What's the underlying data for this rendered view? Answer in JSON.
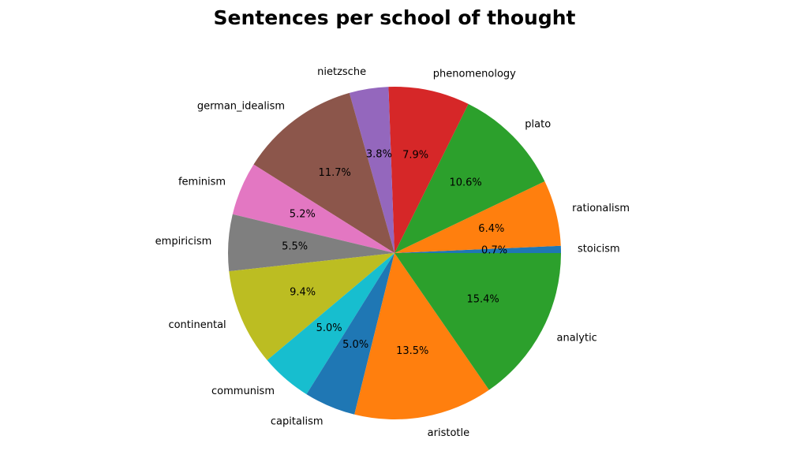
{
  "chart_data": {
    "type": "pie",
    "title": "Sentences per school of thought",
    "slices": [
      {
        "label": "stoicism",
        "percent": 0.7,
        "pct_text": "0.7%",
        "color": "#1f77b4"
      },
      {
        "label": "rationalism",
        "percent": 6.4,
        "pct_text": "6.4%",
        "color": "#ff7f0e"
      },
      {
        "label": "plato",
        "percent": 10.6,
        "pct_text": "10.6%",
        "color": "#2ca02c"
      },
      {
        "label": "phenomenology",
        "percent": 7.9,
        "pct_text": "7.9%",
        "color": "#d62728"
      },
      {
        "label": "nietzsche",
        "percent": 3.8,
        "pct_text": "3.8%",
        "color": "#9467bd"
      },
      {
        "label": "german_idealism",
        "percent": 11.7,
        "pct_text": "11.7%",
        "color": "#8c564b"
      },
      {
        "label": "feminism",
        "percent": 5.2,
        "pct_text": "5.2%",
        "color": "#e377c2"
      },
      {
        "label": "empiricism",
        "percent": 5.5,
        "pct_text": "5.5%",
        "color": "#7f7f7f"
      },
      {
        "label": "continental",
        "percent": 9.4,
        "pct_text": "9.4%",
        "color": "#bcbd22"
      },
      {
        "label": "communism",
        "percent": 5.0,
        "pct_text": "5.0%",
        "color": "#17becf"
      },
      {
        "label": "capitalism",
        "percent": 5.0,
        "pct_text": "5.0%",
        "color": "#1f77b4"
      },
      {
        "label": "aristotle",
        "percent": 13.5,
        "pct_text": "13.5%",
        "color": "#ff7f0e"
      },
      {
        "label": "analytic",
        "percent": 15.4,
        "pct_text": "15.4%",
        "color": "#2ca02c"
      }
    ],
    "start_angle": 0,
    "direction": "counterclockwise"
  }
}
